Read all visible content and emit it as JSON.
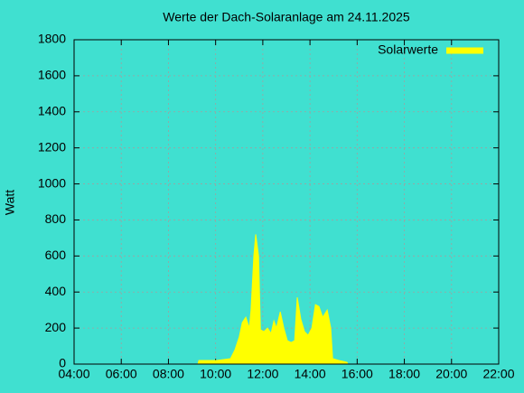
{
  "chart_data": {
    "type": "area",
    "title": "Werte der Dach-Solaranlage am 24.11.2025",
    "y_label": "Watt",
    "x": [
      9.25,
      9.29,
      10.05,
      10.63,
      10.82,
      11.0,
      11.13,
      11.28,
      11.43,
      11.5,
      11.62,
      11.7,
      11.82,
      11.9,
      12.05,
      12.2,
      12.35,
      12.47,
      12.58,
      12.74,
      12.89,
      13.04,
      13.2,
      13.35,
      13.46,
      13.61,
      13.77,
      13.92,
      14.08,
      14.23,
      14.38,
      14.54,
      14.73,
      14.88,
      14.96,
      15.23,
      15.57,
      15.6
    ],
    "series": [
      {
        "name": "Solarwerte",
        "color": "#ffff00",
        "values": [
          0,
          20,
          20,
          30,
          80,
          150,
          230,
          260,
          200,
          300,
          600,
          720,
          600,
          190,
          180,
          200,
          170,
          240,
          200,
          290,
          200,
          130,
          120,
          130,
          370,
          250,
          180,
          160,
          200,
          330,
          320,
          260,
          300,
          200,
          30,
          20,
          10,
          0
        ]
      }
    ],
    "xlim": [
      4,
      22
    ],
    "xticks": [
      {
        "value": 4,
        "label": "04:00"
      },
      {
        "value": 6,
        "label": "06:00"
      },
      {
        "value": 8,
        "label": "08:00"
      },
      {
        "value": 10,
        "label": "10:00"
      },
      {
        "value": 12,
        "label": "12:00"
      },
      {
        "value": 14,
        "label": "14:00"
      },
      {
        "value": 16,
        "label": "16:00"
      },
      {
        "value": 18,
        "label": "18:00"
      },
      {
        "value": 20,
        "label": "20:00"
      },
      {
        "value": 22,
        "label": "22:00"
      }
    ],
    "ylim": [
      0,
      1800
    ],
    "yticks": [
      0,
      200,
      400,
      600,
      800,
      1000,
      1200,
      1400,
      1600,
      1800
    ],
    "grid": true,
    "legend": "top-right"
  }
}
